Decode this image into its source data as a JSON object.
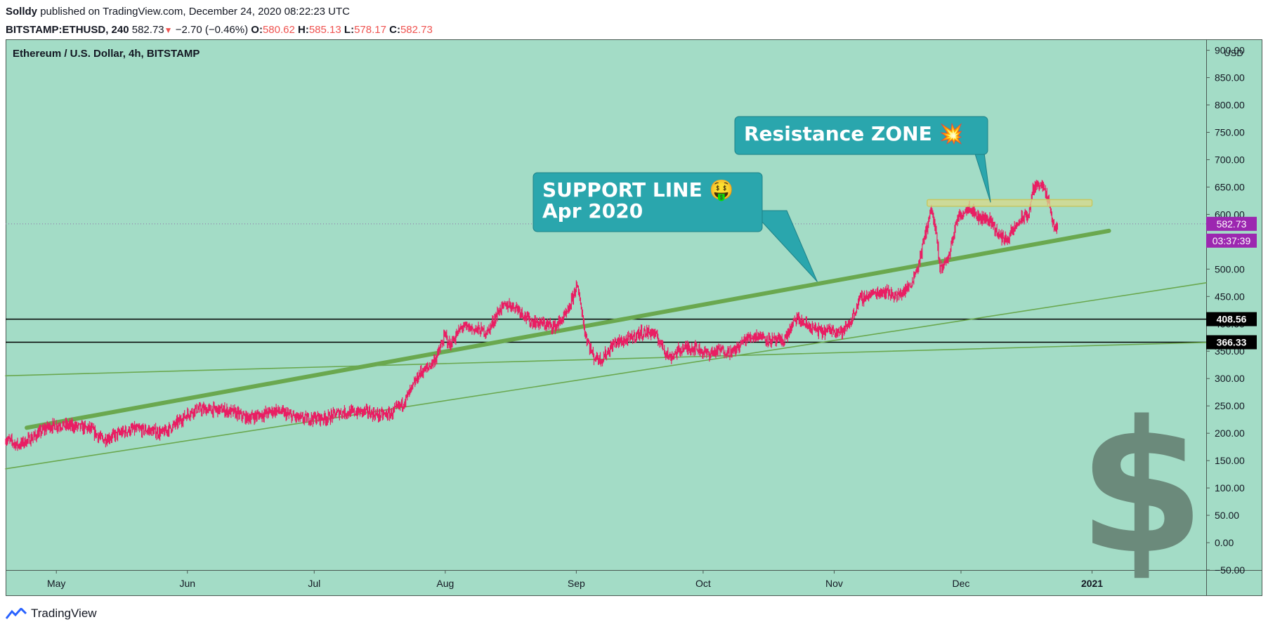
{
  "header": {
    "author": "Solldy",
    "published_text": "published on TradingView.com, December 24, 2020 08:22:23 UTC",
    "symbol": "BITSTAMP:ETHUSD, 240",
    "last": "582.73",
    "change": "−2.70 (−0.46%)",
    "o_label": "O:",
    "o": "580.62",
    "h_label": "H:",
    "h": "585.13",
    "l_label": "L:",
    "l": "578.17",
    "c_label": "C:",
    "c": "582.73"
  },
  "footer": {
    "brand": "TradingView"
  },
  "colors": {
    "background": "#a3dcc6",
    "candle": "#e91e63",
    "trendline": "#6aa84f",
    "callout": "#2aa6ad",
    "price_badge": "#9c27b0",
    "level_badge": "#000000",
    "dollar": "#6b8a7b",
    "resistance_box": "#d9d98a"
  },
  "chart_data": {
    "type": "candlestick",
    "title": "Ethereum / U.S. Dollar, 4h, BITSTAMP",
    "currency_label": "USD",
    "x_ticks": [
      "May",
      "Jun",
      "Jul",
      "Aug",
      "Sep",
      "Oct",
      "Nov",
      "Dec",
      "2021"
    ],
    "x_tick_dates": [
      "2020-05-01",
      "2020-06-01",
      "2020-07-01",
      "2020-08-01",
      "2020-09-01",
      "2020-10-01",
      "2020-11-01",
      "2020-12-01",
      "2021-01-01"
    ],
    "x_range": [
      "2020-04-19",
      "2021-01-28"
    ],
    "y_ticks": [
      "900.00",
      "850.00",
      "800.00",
      "750.00",
      "700.00",
      "650.00",
      "600.00",
      "550.00",
      "500.00",
      "450.00",
      "400.00",
      "350.00",
      "300.00",
      "250.00",
      "200.00",
      "150.00",
      "100.00",
      "50.00",
      "0.00",
      "−50.00"
    ],
    "ylim": [
      -50,
      920
    ],
    "price_series": [
      [
        "2020-04-19",
        190
      ],
      [
        "2020-04-22",
        178
      ],
      [
        "2020-04-26",
        195
      ],
      [
        "2020-04-29",
        212
      ],
      [
        "2020-05-02",
        215
      ],
      [
        "2020-05-06",
        212
      ],
      [
        "2020-05-09",
        208
      ],
      [
        "2020-05-12",
        188
      ],
      [
        "2020-05-16",
        200
      ],
      [
        "2020-05-19",
        207
      ],
      [
        "2020-05-23",
        205
      ],
      [
        "2020-05-26",
        200
      ],
      [
        "2020-05-29",
        215
      ],
      [
        "2020-06-01",
        235
      ],
      [
        "2020-06-03",
        244
      ],
      [
        "2020-06-06",
        243
      ],
      [
        "2020-06-09",
        243
      ],
      [
        "2020-06-12",
        238
      ],
      [
        "2020-06-15",
        228
      ],
      [
        "2020-06-18",
        233
      ],
      [
        "2020-06-22",
        242
      ],
      [
        "2020-06-25",
        233
      ],
      [
        "2020-06-28",
        226
      ],
      [
        "2020-07-01",
        228
      ],
      [
        "2020-07-04",
        228
      ],
      [
        "2020-07-07",
        238
      ],
      [
        "2020-07-10",
        238
      ],
      [
        "2020-07-13",
        240
      ],
      [
        "2020-07-16",
        233
      ],
      [
        "2020-07-19",
        235
      ],
      [
        "2020-07-22",
        255
      ],
      [
        "2020-07-24",
        280
      ],
      [
        "2020-07-26",
        310
      ],
      [
        "2020-07-28",
        320
      ],
      [
        "2020-07-30",
        340
      ],
      [
        "2020-08-01",
        380
      ],
      [
        "2020-08-02",
        360
      ],
      [
        "2020-08-05",
        395
      ],
      [
        "2020-08-08",
        390
      ],
      [
        "2020-08-11",
        385
      ],
      [
        "2020-08-14",
        428
      ],
      [
        "2020-08-16",
        435
      ],
      [
        "2020-08-18",
        430
      ],
      [
        "2020-08-21",
        405
      ],
      [
        "2020-08-24",
        400
      ],
      [
        "2020-08-27",
        395
      ],
      [
        "2020-08-30",
        420
      ],
      [
        "2020-09-01",
        470
      ],
      [
        "2020-09-02",
        440
      ],
      [
        "2020-09-03",
        385
      ],
      [
        "2020-09-05",
        340
      ],
      [
        "2020-09-07",
        335
      ],
      [
        "2020-09-10",
        365
      ],
      [
        "2020-09-13",
        370
      ],
      [
        "2020-09-16",
        383
      ],
      [
        "2020-09-19",
        385
      ],
      [
        "2020-09-21",
        365
      ],
      [
        "2020-09-23",
        338
      ],
      [
        "2020-09-26",
        355
      ],
      [
        "2020-09-29",
        357
      ],
      [
        "2020-10-02",
        345
      ],
      [
        "2020-10-05",
        352
      ],
      [
        "2020-10-08",
        348
      ],
      [
        "2020-10-11",
        372
      ],
      [
        "2020-10-14",
        380
      ],
      [
        "2020-10-17",
        370
      ],
      [
        "2020-10-20",
        368
      ],
      [
        "2020-10-23",
        410
      ],
      [
        "2020-10-26",
        395
      ],
      [
        "2020-10-29",
        385
      ],
      [
        "2020-11-01",
        390
      ],
      [
        "2020-11-03",
        385
      ],
      [
        "2020-11-05",
        405
      ],
      [
        "2020-11-07",
        445
      ],
      [
        "2020-11-10",
        455
      ],
      [
        "2020-11-13",
        460
      ],
      [
        "2020-11-16",
        450
      ],
      [
        "2020-11-19",
        470
      ],
      [
        "2020-11-21",
        510
      ],
      [
        "2020-11-23",
        580
      ],
      [
        "2020-11-24",
        610
      ],
      [
        "2020-11-25",
        570
      ],
      [
        "2020-11-26",
        500
      ],
      [
        "2020-11-28",
        520
      ],
      [
        "2020-11-30",
        590
      ],
      [
        "2020-12-01",
        600
      ],
      [
        "2020-12-03",
        615
      ],
      [
        "2020-12-05",
        595
      ],
      [
        "2020-12-08",
        590
      ],
      [
        "2020-12-10",
        560
      ],
      [
        "2020-12-12",
        555
      ],
      [
        "2020-12-15",
        590
      ],
      [
        "2020-12-17",
        600
      ],
      [
        "2020-12-18",
        645
      ],
      [
        "2020-12-20",
        660
      ],
      [
        "2020-12-21",
        635
      ],
      [
        "2020-12-22",
        615
      ],
      [
        "2020-12-23",
        570
      ],
      [
        "2020-12-24",
        583
      ]
    ],
    "trendlines": [
      {
        "name": "",
        "from": [
          "2020-04-24",
          210
        ],
        "to": [
          "2021-01-05",
          570
        ],
        "weight": "thick"
      },
      {
        "name": "",
        "from": [
          "2020-04-19",
          135
        ],
        "to": [
          "2021-01-28",
          475
        ],
        "weight": "thin"
      },
      {
        "name": "",
        "from": [
          "2020-04-19",
          305
        ],
        "to": [
          "2021-01-28",
          366
        ],
        "weight": "thin"
      }
    ],
    "horizontal_levels": [
      408.56,
      366.33
    ],
    "current_price": 582.73,
    "resistance_zone": {
      "from": "2020-11-23",
      "to": "2021-01-01",
      "y_low": 615,
      "y_high": 627
    },
    "axis_badges": [
      {
        "text": "582.73",
        "value": 582.73,
        "style": "price"
      },
      {
        "text": "03:37:39",
        "value": 552,
        "style": "price"
      },
      {
        "text": "408.56",
        "value": 408.56,
        "style": "level"
      },
      {
        "text": "366.33",
        "value": 366.33,
        "style": "level"
      }
    ],
    "annotations": [
      {
        "lines": [
          "SUPPORT LINE 🤑",
          "Apr 2020"
        ],
        "points_to": [
          "2020-10-28",
          477
        ]
      },
      {
        "lines": [
          "Resistance ZONE 💥"
        ],
        "points_to": [
          "2020-12-08",
          622
        ]
      }
    ]
  }
}
